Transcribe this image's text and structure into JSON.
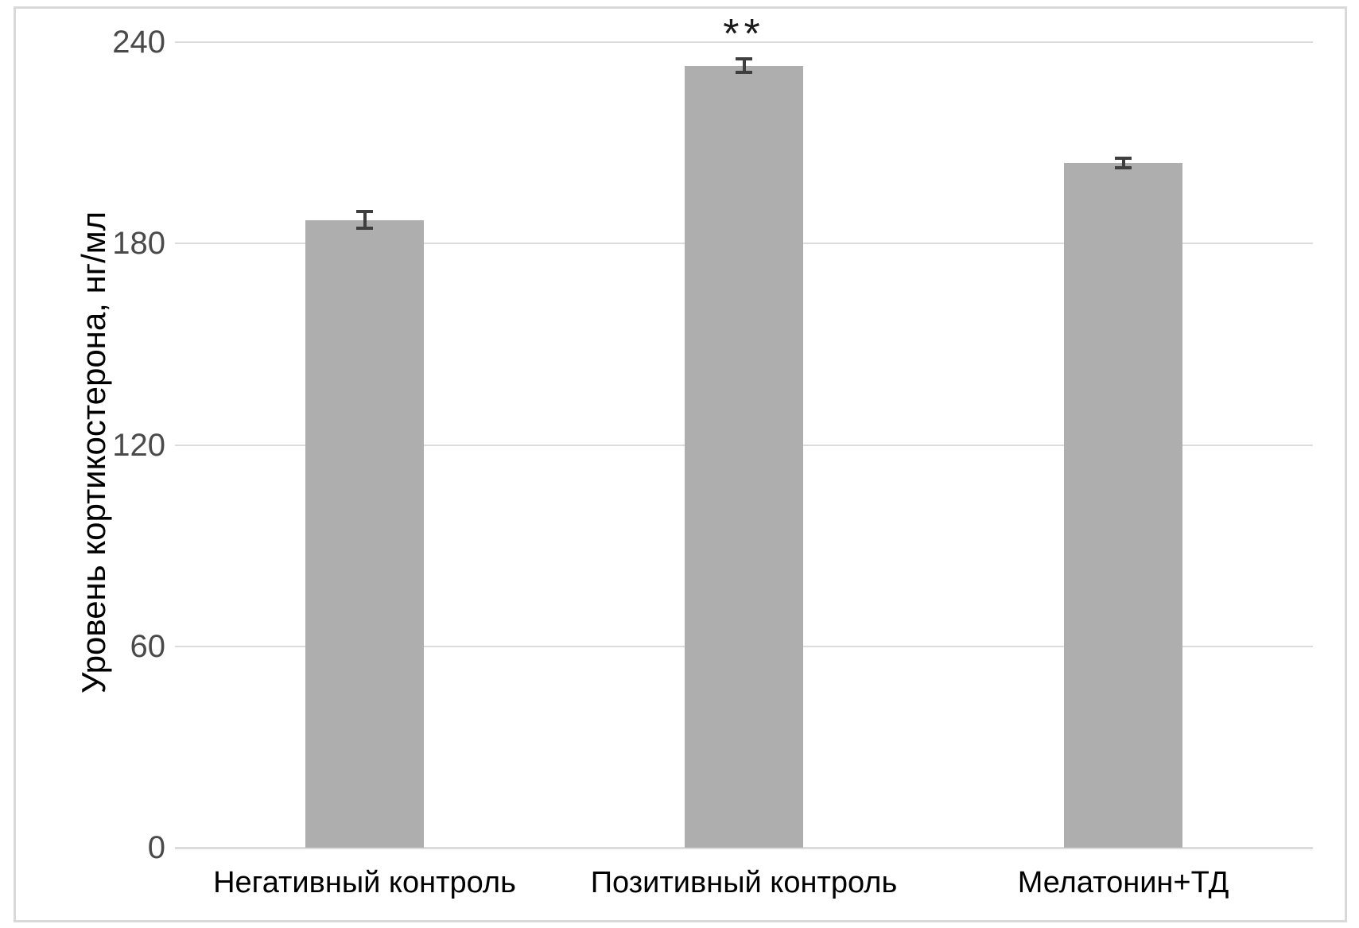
{
  "chart_data": {
    "type": "bar",
    "title": "",
    "xlabel": "",
    "ylabel": "Уровень кортикостерона, нг/мл",
    "categories": [
      "Негативный контроль",
      "Позитивный контроль",
      "Мелатонин+ТД"
    ],
    "values": [
      187,
      233,
      204
    ],
    "error_bars": [
      3,
      2.5,
      2
    ],
    "annotations": [
      {
        "series_index": 1,
        "text": "**"
      }
    ],
    "yticks": [
      0,
      60,
      120,
      180,
      240
    ],
    "ylim": [
      0,
      240
    ],
    "grid": true,
    "legend": "none",
    "colors": {
      "bar_fill": "#aeaeae",
      "error_bar": "#3f3f3f",
      "gridline": "#dcdcdc",
      "tick_label": "#4a4a4a",
      "category_label": "#000000",
      "frame_border": "#d9d9d9",
      "background": "#ffffff"
    }
  }
}
